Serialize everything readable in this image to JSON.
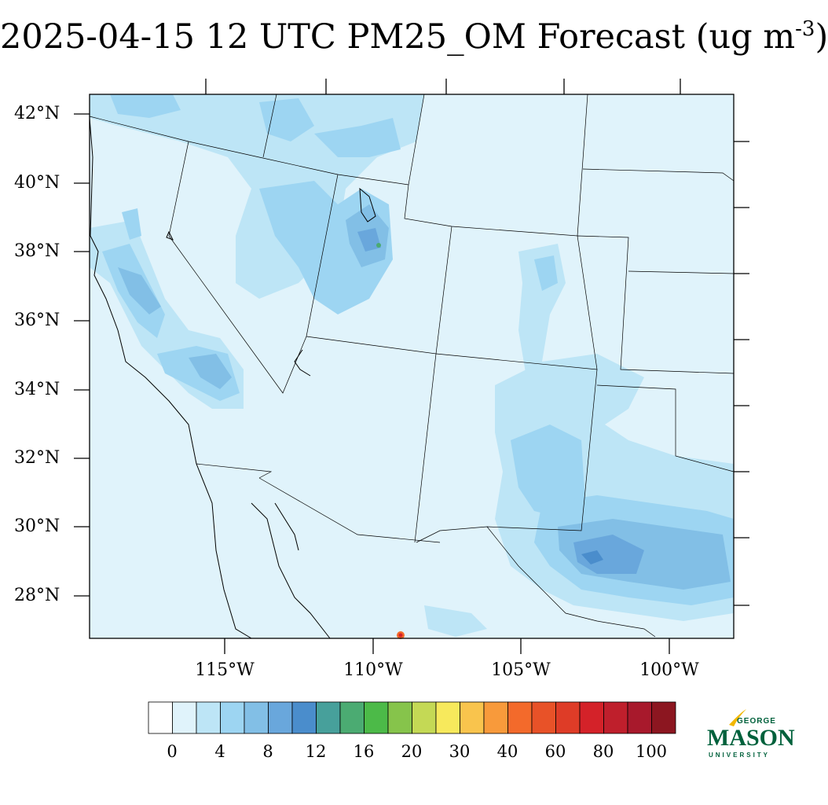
{
  "title": {
    "main": "2025-04-15 12 UTC PM25_OM Forecast (ug m",
    "exponent": "-3",
    "close": ")"
  },
  "map": {
    "projection": "lambert-conformal",
    "ocean_color": "#e0f3fb",
    "boundary_color": "#000000",
    "lat_labels": [
      "42°N",
      "40°N",
      "38°N",
      "36°N",
      "34°N",
      "32°N",
      "30°N",
      "28°N"
    ],
    "lon_labels": [
      "115°W",
      "110°W",
      "105°W",
      "100°W"
    ],
    "hotspots": [
      {
        "region": "Central Valley CA",
        "level": "6-10"
      },
      {
        "region": "Southern California",
        "level": "6-10"
      },
      {
        "region": "Central Utah",
        "level": "6-12"
      },
      {
        "region": "South Texas / Coahuila",
        "level": "8-12"
      },
      {
        "region": "Sinaloa fire point",
        "level": "40-100"
      }
    ]
  },
  "colorbar": {
    "labels": [
      "0",
      "4",
      "8",
      "12",
      "16",
      "20",
      "30",
      "40",
      "60",
      "80",
      "100"
    ],
    "colors": [
      "#ffffff",
      "#e0f3fb",
      "#bde5f6",
      "#9dd5f2",
      "#82bfe6",
      "#69a7dc",
      "#4a8dcc",
      "#47a09b",
      "#4bab72",
      "#4cba48",
      "#86c44b",
      "#c4d955",
      "#f7e95c",
      "#f9c44d",
      "#f89a3b",
      "#f36a2b",
      "#e85228",
      "#de3c27",
      "#d42229",
      "#bf1f2c",
      "#a8192c",
      "#8c1620"
    ]
  },
  "logo": {
    "top": "GEORGE",
    "name": "MASON",
    "bottom": "UNIVERSITY"
  }
}
